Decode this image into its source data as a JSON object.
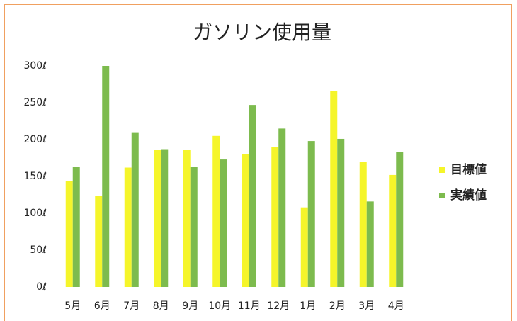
{
  "chart_data": {
    "type": "bar",
    "title": "ガソリン使用量",
    "categories": [
      "5月",
      "6月",
      "7月",
      "8月",
      "9月",
      "10月",
      "11月",
      "12月",
      "1月",
      "2月",
      "3月",
      "4月"
    ],
    "series": [
      {
        "name": "目標値",
        "color": "#f5f52a",
        "values": [
          144,
          124,
          162,
          186,
          186,
          205,
          180,
          190,
          108,
          266,
          170,
          152
        ]
      },
      {
        "name": "実績値",
        "color": "#7dbb4e",
        "values": [
          163,
          300,
          210,
          187,
          163,
          173,
          247,
          215,
          198,
          201,
          116,
          183
        ]
      }
    ],
    "ylim": [
      0,
      300
    ],
    "yticks": [
      {
        "value": 0,
        "label": "0ℓ"
      },
      {
        "value": 50,
        "label": "50ℓ"
      },
      {
        "value": 100,
        "label": "100ℓ"
      },
      {
        "value": 150,
        "label": "150ℓ"
      },
      {
        "value": 200,
        "label": "200ℓ"
      },
      {
        "value": 250,
        "label": "250ℓ"
      },
      {
        "value": 300,
        "label": "300ℓ"
      }
    ],
    "grid": false,
    "legend": "right"
  }
}
